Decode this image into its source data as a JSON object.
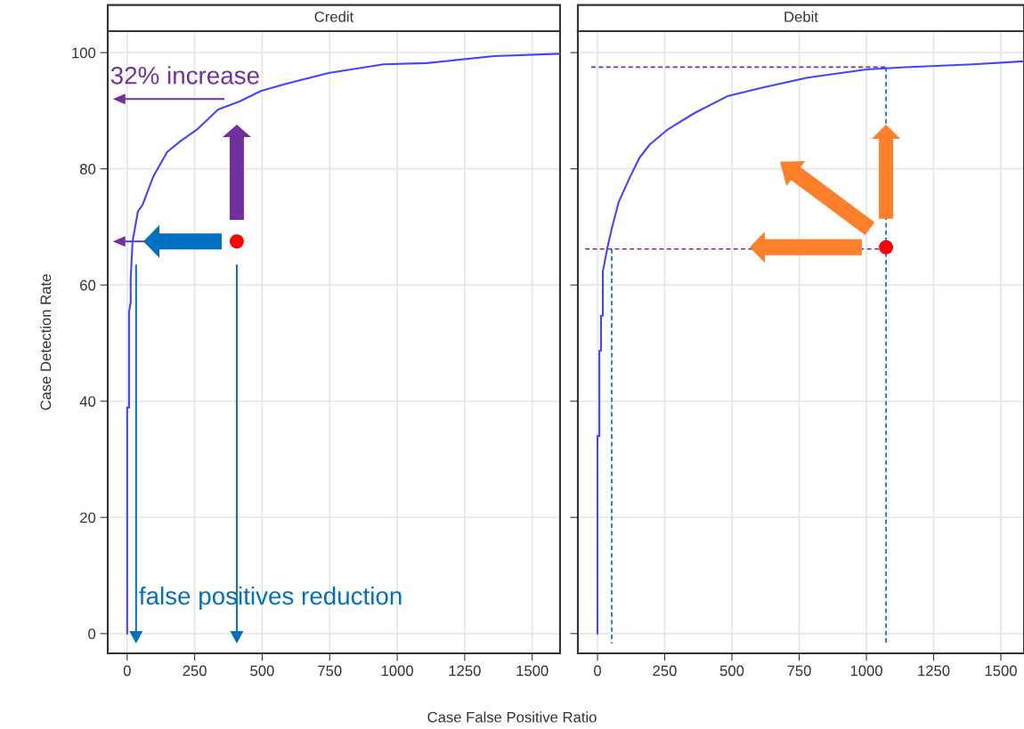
{
  "chart_data": [
    {
      "type": "line",
      "title": "Credit",
      "xlabel": "Case False Positive Ratio",
      "ylabel": "Case Detection Rate",
      "xlim": [
        -72,
        1603
      ],
      "ylim": [
        -3.4,
        103.7
      ],
      "xticks": [
        0,
        250,
        500,
        750,
        1000,
        1250,
        1500
      ],
      "yticks": [
        0,
        20,
        40,
        60,
        80,
        100
      ],
      "grid": true,
      "annotations": [
        "32% increase",
        "false positives reduction"
      ],
      "series": [
        {
          "color": "#4444ff",
          "x": [
            0,
            0,
            7,
            7,
            13,
            13,
            20,
            40,
            57,
            96,
            148,
            198,
            257,
            337,
            416,
            495,
            587,
            746,
            950,
            1109,
            1359,
            1600
          ],
          "values": [
            0,
            38.9,
            38.9,
            55.4,
            57,
            61,
            67.5,
            72.7,
            73.8,
            78.6,
            82.9,
            84.8,
            86.7,
            90.2,
            91.6,
            93.4,
            94.6,
            96.5,
            98,
            98.2,
            99.4,
            99.8
          ]
        },
        {
          "type": "scatter",
          "color": "#ff0000",
          "marker": "circle",
          "x": [
            406
          ],
          "values": [
            67.5
          ]
        }
      ]
    },
    {
      "type": "line",
      "title": "Debit",
      "xlim": [
        -73,
        1586
      ],
      "ylim": [
        -3.4,
        103.7
      ],
      "xticks": [
        0,
        250,
        500,
        750,
        1000,
        1250,
        1500
      ],
      "yticks": [
        0,
        20,
        40,
        60,
        80,
        100
      ],
      "grid": true,
      "tick_labels": "x",
      "series": [
        {
          "color": "#4444ff",
          "x": [
            0,
            0,
            7,
            7,
            13,
            13,
            20,
            20,
            36,
            53,
            79,
            119,
            156,
            195,
            262,
            361,
            483,
            616,
            781,
            1000,
            1146,
            1397,
            1586
          ],
          "values": [
            0,
            34,
            34,
            48.7,
            48.7,
            54.7,
            54.7,
            62.3,
            66.2,
            69.7,
            74.3,
            78.4,
            81.9,
            84.2,
            86.8,
            89.6,
            92.5,
            94,
            95.7,
            97.1,
            97.5,
            98,
            98.5
          ]
        },
        {
          "color": "#7030a0",
          "line_style": "dashed",
          "x": [
            -23,
            1073
          ],
          "values": [
            97.5,
            97.5
          ]
        },
        {
          "color": "#7030a0",
          "line_style": "dashed",
          "x": [
            -46,
            1073
          ],
          "values": [
            66.2,
            66.2
          ]
        },
        {
          "color": "#0070c0",
          "line_style": "dashed",
          "x": [
            53,
            53
          ],
          "values": [
            66.2,
            -1.7
          ]
        },
        {
          "color": "#0070c0",
          "line_style": "dashed",
          "x": [
            1073,
            1073
          ],
          "values": [
            97.5,
            -1.7
          ]
        },
        {
          "type": "scatter",
          "color": "#ff0000",
          "marker": "circle",
          "x": [
            1073
          ],
          "values": [
            66.5
          ]
        }
      ]
    }
  ]
}
